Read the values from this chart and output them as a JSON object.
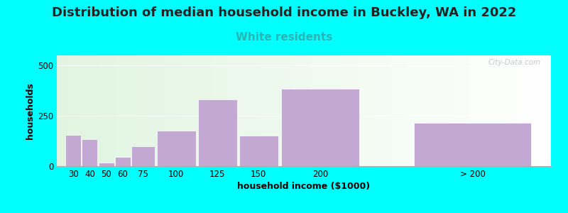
{
  "title": "Distribution of median household income in Buckley, WA in 2022",
  "subtitle": "White residents",
  "xlabel": "household income ($1000)",
  "ylabel": "households",
  "background_color": "#00FFFF",
  "bar_color": "#c4a8d4",
  "categories": [
    "30",
    "40",
    "50",
    "60",
    "75",
    "100",
    "125",
    "150",
    "200",
    "> 200"
  ],
  "values": [
    155,
    135,
    18,
    45,
    100,
    175,
    330,
    150,
    385,
    215
  ],
  "bar_lefts": [
    20,
    30,
    40,
    50,
    60,
    75,
    100,
    125,
    150,
    230
  ],
  "bar_widths": [
    10,
    10,
    10,
    10,
    15,
    25,
    25,
    25,
    50,
    75
  ],
  "xlim": [
    15,
    315
  ],
  "ylim": [
    0,
    550
  ],
  "yticks": [
    0,
    250,
    500
  ],
  "title_fontsize": 13,
  "subtitle_fontsize": 11,
  "subtitle_color": "#2ab5b5",
  "title_color": "#222222",
  "axis_label_fontsize": 9,
  "tick_fontsize": 8.5,
  "watermark": "City-Data.com"
}
